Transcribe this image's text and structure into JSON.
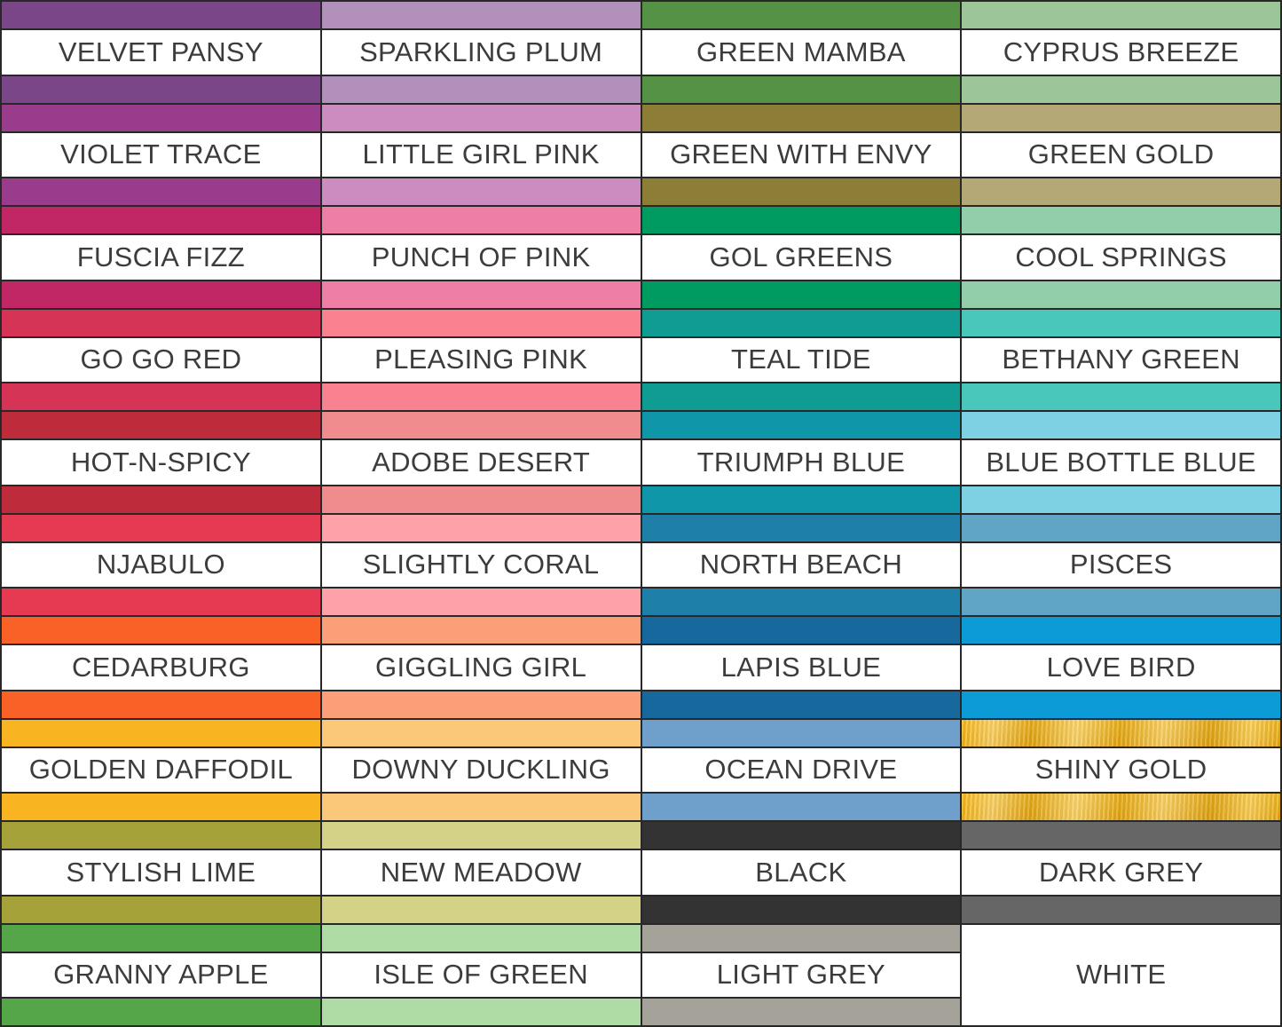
{
  "palette_chart": {
    "type": "color-swatch-table",
    "columns": 4,
    "rows_count": 10,
    "label_band_bg": "#FFFFFF",
    "grid_line_color": "#282828",
    "label_text_color": "#3C3C3C"
  },
  "rows": [
    [
      {
        "name": "VELVET PANSY",
        "color": "#7A4687",
        "style": "plain"
      },
      {
        "name": "SPARKLING PLUM",
        "color": "#B191BB",
        "style": "plain"
      },
      {
        "name": "GREEN MAMBA",
        "color": "#559245",
        "style": "plain"
      },
      {
        "name": "CYPRUS BREEZE",
        "color": "#9CC699",
        "style": "plain"
      }
    ],
    [
      {
        "name": "VIOLET TRACE",
        "color": "#993C8B",
        "style": "plain"
      },
      {
        "name": "LITTLE GIRL PINK",
        "color": "#CC8CC0",
        "style": "plain"
      },
      {
        "name": "GREEN WITH ENVY",
        "color": "#8D7E37",
        "style": "plain"
      },
      {
        "name": "GREEN GOLD",
        "color": "#B4A877",
        "style": "plain"
      }
    ],
    [
      {
        "name": "FUSCIA FIZZ",
        "color": "#C22765",
        "style": "plain"
      },
      {
        "name": "PUNCH OF PINK",
        "color": "#EE7EA5",
        "style": "plain"
      },
      {
        "name": "GOL GREENS",
        "color": "#009B60",
        "style": "plain"
      },
      {
        "name": "COOL SPRINGS",
        "color": "#93CEAB",
        "style": "plain"
      }
    ],
    [
      {
        "name": "GO GO RED",
        "color": "#D53457",
        "style": "plain"
      },
      {
        "name": "PLEASING PINK",
        "color": "#F98291",
        "style": "plain"
      },
      {
        "name": "TEAL TIDE",
        "color": "#109B93",
        "style": "plain"
      },
      {
        "name": "BETHANY GREEN",
        "color": "#49C7BB",
        "style": "plain"
      }
    ],
    [
      {
        "name": "HOT-N-SPICY",
        "color": "#BE2B3B",
        "style": "plain"
      },
      {
        "name": "ADOBE DESERT",
        "color": "#F08C8D",
        "style": "plain"
      },
      {
        "name": "TRIUMPH BLUE",
        "color": "#0F96A9",
        "style": "plain"
      },
      {
        "name": "BLUE BOTTLE BLUE",
        "color": "#7ED1E3",
        "style": "plain"
      }
    ],
    [
      {
        "name": "NJABULO",
        "color": "#E63A52",
        "style": "plain"
      },
      {
        "name": "SLIGHTLY CORAL",
        "color": "#FFA1A9",
        "style": "plain"
      },
      {
        "name": "NORTH BEACH",
        "color": "#1E80A8",
        "style": "plain"
      },
      {
        "name": "PISCES",
        "color": "#60A5C5",
        "style": "plain"
      }
    ],
    [
      {
        "name": "CEDARBURG",
        "color": "#F96126",
        "style": "plain"
      },
      {
        "name": "GIGGLING GIRL",
        "color": "#FA9F77",
        "style": "plain"
      },
      {
        "name": "LAPIS BLUE",
        "color": "#17689D",
        "style": "plain"
      },
      {
        "name": "LOVE BIRD",
        "color": "#0D9BD8",
        "style": "plain"
      }
    ],
    [
      {
        "name": "GOLDEN DAFFODIL",
        "color": "#F9B521",
        "style": "plain"
      },
      {
        "name": "DOWNY DUCKLING",
        "color": "#FBC87A",
        "style": "plain"
      },
      {
        "name": "OCEAN DRIVE",
        "color": "#6FA0CB",
        "style": "plain"
      },
      {
        "name": "SHINY GOLD",
        "color": "#EDB224",
        "style": "gold"
      }
    ],
    [
      {
        "name": "STYLISH LIME",
        "color": "#A4A238",
        "style": "plain"
      },
      {
        "name": "NEW MEADOW",
        "color": "#D3D286",
        "style": "plain"
      },
      {
        "name": "BLACK",
        "color": "#333333",
        "style": "plain"
      },
      {
        "name": "DARK GREY",
        "color": "#666666",
        "style": "plain"
      }
    ],
    [
      {
        "name": "GRANNY APPLE",
        "color": "#55A649",
        "style": "plain"
      },
      {
        "name": "ISLE OF GREEN",
        "color": "#AFDBA5",
        "style": "plain"
      },
      {
        "name": "LIGHT GREY",
        "color": "#A5A29A",
        "style": "plain"
      },
      {
        "name": "WHITE",
        "color": "#FFFFFF",
        "style": "solid"
      }
    ]
  ]
}
